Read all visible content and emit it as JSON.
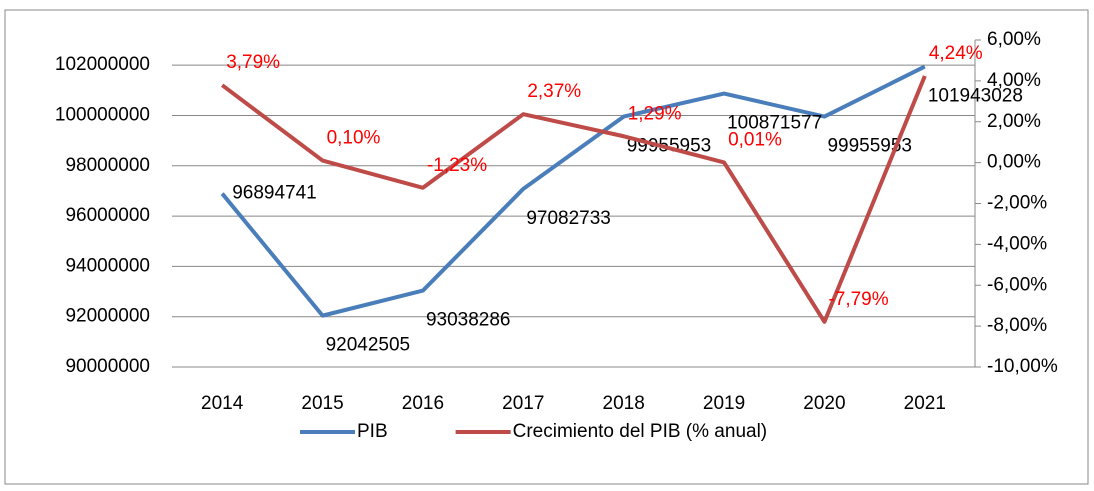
{
  "chart_data": {
    "type": "line",
    "categories": [
      "2014",
      "2015",
      "2016",
      "2017",
      "2018",
      "2019",
      "2020",
      "2021"
    ],
    "series": [
      {
        "name": "PIB",
        "color": "#4a7ebb",
        "values": [
          96894741,
          92042505,
          93038286,
          97082733,
          99955953,
          100871577,
          99955953,
          101943028
        ]
      },
      {
        "name": "Crecimiento del PIB (% anual)",
        "color": "#be4b48",
        "axis": "y2",
        "values": [
          3.79,
          0.1,
          -1.23,
          2.37,
          1.29,
          0.01,
          -7.79,
          4.24
        ],
        "value_labels": [
          "3,79%",
          "0,10%",
          "-1,23%",
          "2,37%",
          "1,29%",
          "0,01%",
          "-7,79%",
          "4,24%"
        ]
      }
    ],
    "ylim": [
      90000000,
      103000000
    ],
    "yticks": [
      90000000,
      92000000,
      94000000,
      96000000,
      98000000,
      100000000,
      102000000
    ],
    "y2lim": [
      -10,
      6
    ],
    "y2ticks": [
      {
        "value": -10,
        "label": "-10,00%"
      },
      {
        "value": -8,
        "label": "-8,00%"
      },
      {
        "value": -6,
        "label": "-6,00%"
      },
      {
        "value": -4,
        "label": "-4,00%"
      },
      {
        "value": -2,
        "label": "-2,00%"
      },
      {
        "value": 0,
        "label": "0,00%"
      },
      {
        "value": 2,
        "label": "2,00%"
      },
      {
        "value": 4,
        "label": "4,00%"
      },
      {
        "value": 6,
        "label": "6,00%"
      }
    ],
    "grid": true
  }
}
